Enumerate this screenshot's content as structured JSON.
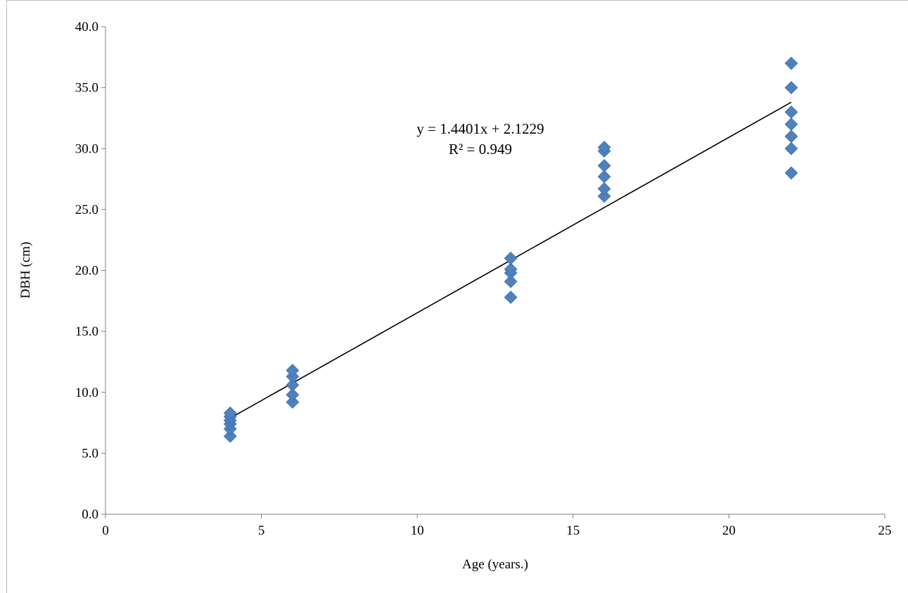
{
  "chart_data": {
    "type": "scatter",
    "xlabel": "Age (years.)",
    "ylabel": "DBH (cm)",
    "xlim": [
      0,
      25
    ],
    "ylim": [
      0,
      40
    ],
    "x_ticks": [
      "0",
      "5",
      "10",
      "15",
      "20",
      "25"
    ],
    "y_ticks": [
      "0.0",
      "5.0",
      "10.0",
      "15.0",
      "20.0",
      "25.0",
      "30.0",
      "35.0",
      "40.0"
    ],
    "grid": false,
    "marker": "diamond",
    "marker_color": "#4f81bd",
    "series": [
      {
        "points": [
          [
            4,
            6.4
          ],
          [
            4,
            7.0
          ],
          [
            4,
            7.4
          ],
          [
            4,
            7.7
          ],
          [
            4,
            8.0
          ],
          [
            4,
            8.3
          ],
          [
            6,
            9.2
          ],
          [
            6,
            9.8
          ],
          [
            6,
            10.6
          ],
          [
            6,
            11.3
          ],
          [
            6,
            11.8
          ],
          [
            13,
            17.8
          ],
          [
            13,
            19.1
          ],
          [
            13,
            19.8
          ],
          [
            13,
            20.1
          ],
          [
            13,
            21.0
          ],
          [
            16,
            26.1
          ],
          [
            16,
            26.7
          ],
          [
            16,
            27.7
          ],
          [
            16,
            28.6
          ],
          [
            16,
            29.8
          ],
          [
            16,
            30.1
          ],
          [
            22,
            28.0
          ],
          [
            22,
            30.0
          ],
          [
            22,
            31.0
          ],
          [
            22,
            32.0
          ],
          [
            22,
            33.0
          ],
          [
            22,
            35.0
          ],
          [
            22,
            37.0
          ]
        ]
      }
    ],
    "trendline": {
      "slope": 1.4401,
      "intercept": 2.1229,
      "x_range": [
        4,
        22
      ],
      "color": "#000000",
      "equation_label": "y = 1.4401x + 2.1229",
      "r2_label": "R² = 0.949"
    }
  }
}
